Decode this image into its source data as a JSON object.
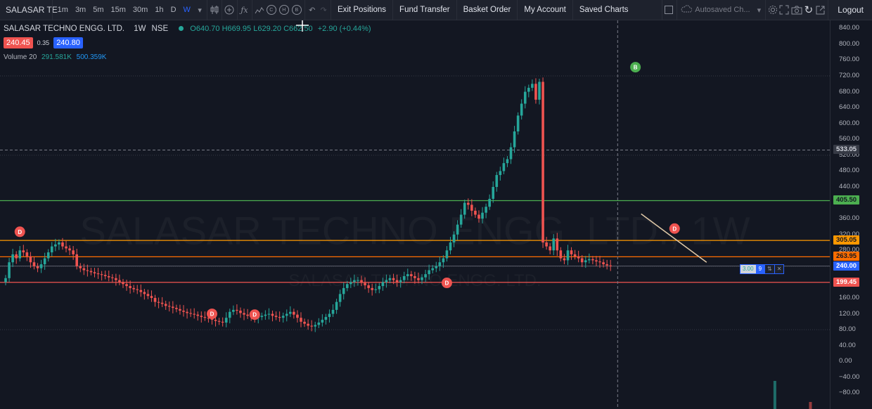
{
  "toolbar": {
    "symbol": "SALASAR TE",
    "intervals": [
      "1m",
      "3m",
      "5m",
      "15m",
      "30m",
      "1h",
      "D",
      "W"
    ],
    "active_interval": "W",
    "circle_icons": [
      "C",
      "H",
      "B"
    ],
    "buttons": [
      "Exit Positions",
      "Fund Transfer",
      "Basket Order",
      "My Account",
      "Saved Charts"
    ],
    "autosave": "Autosaved Ch...",
    "logout": "Logout"
  },
  "legend": {
    "title": "SALASAR TECHNO ENGG. LTD.",
    "interval": "1W",
    "exchange": "NSE",
    "open_label": "O",
    "open": "640.70",
    "high_label": "H",
    "high": "669.95",
    "low_label": "L",
    "low": "629.20",
    "close_label": "C",
    "close": "662.50",
    "change": "+2.90 (+0.44%)",
    "sell": "240.45",
    "spread": "0.35",
    "buy": "240.80",
    "volume_label": "Volume 20",
    "volume_a": "291.581K",
    "volume_b": "500.359K"
  },
  "watermark": {
    "main": "SALASAR TECHNO ENGG. LTD., 1W",
    "sub": "SALASAR TECHNO ENGG. LTD."
  },
  "axis_ticks": [
    "840.00",
    "800.00",
    "760.00",
    "720.00",
    "680.00",
    "640.00",
    "600.00",
    "560.00",
    "520.00",
    "480.00",
    "440.00",
    "400.00",
    "360.00",
    "320.00",
    "280.00",
    "240.00",
    "200.00",
    "160.00",
    "120.00",
    "80.00",
    "40.00",
    "0.00",
    "−40.00",
    "−80.00"
  ],
  "price_tags": [
    {
      "label": "533.05",
      "price": 533.05,
      "bg": "#363a45",
      "fg": "#d1d4dc"
    },
    {
      "label": "405.50",
      "price": 405.5,
      "bg": "#4caf50",
      "fg": "#131722"
    },
    {
      "label": "305.05",
      "price": 305.05,
      "bg": "#ff9800",
      "fg": "#131722"
    },
    {
      "label": "263.95",
      "price": 263.95,
      "bg": "#ff6d00",
      "fg": "#131722"
    },
    {
      "label": "240.40",
      "price": 240.4,
      "bg": "#ef5350",
      "fg": "#ffffff"
    },
    {
      "label": "240.00",
      "price": 240.0,
      "bg": "#2962ff",
      "fg": "#ffffff"
    },
    {
      "label": "199.45",
      "price": 199.45,
      "bg": "#ef5350",
      "fg": "#ffffff"
    }
  ],
  "order": {
    "qty": "3.00",
    "count": "9"
  },
  "markers": [
    {
      "label": "D",
      "idx": 4,
      "price": 327
    },
    {
      "label": "D",
      "idx": 58,
      "price": 120
    },
    {
      "label": "D",
      "idx": 70,
      "price": 118
    },
    {
      "label": "D",
      "idx": 124,
      "price": 198
    },
    {
      "label": "B",
      "idx": 177,
      "price": 742
    },
    {
      "label": "D",
      "idx": 188,
      "price": 335
    }
  ],
  "colors": {
    "up": "#26a69a",
    "down": "#ef5350",
    "background": "#131722",
    "grid": "#2a2e39",
    "accent": "#2962ff"
  },
  "chart_data": {
    "type": "candlestick",
    "y_range": [
      -120,
      860
    ],
    "closes": [
      210,
      250,
      270,
      260,
      280,
      275,
      265,
      250,
      240,
      235,
      245,
      260,
      275,
      290,
      295,
      300,
      290,
      285,
      280,
      270,
      240,
      235,
      230,
      228,
      225,
      222,
      220,
      218,
      215,
      212,
      210,
      205,
      200,
      195,
      190,
      185,
      182,
      180,
      175,
      170,
      165,
      160,
      150,
      148,
      145,
      140,
      138,
      135,
      132,
      128,
      125,
      122,
      120,
      118,
      115,
      112,
      110,
      108,
      105,
      102,
      100,
      98,
      110,
      125,
      130,
      128,
      122,
      118,
      115,
      112,
      110,
      112,
      115,
      118,
      120,
      115,
      112,
      110,
      115,
      120,
      125,
      118,
      110,
      100,
      95,
      90,
      88,
      92,
      98,
      105,
      112,
      120,
      130,
      150,
      170,
      185,
      195,
      200,
      205,
      205,
      198,
      192,
      185,
      180,
      182,
      190,
      200,
      205,
      210,
      205,
      200,
      205,
      215,
      220,
      215,
      210,
      205,
      212,
      220,
      230,
      235,
      240,
      250,
      260,
      280,
      300,
      320,
      345,
      370,
      400,
      395,
      380,
      370,
      360,
      375,
      390,
      410,
      440,
      470,
      480,
      500,
      510,
      540,
      580,
      620,
      650,
      680,
      690,
      700,
      660,
      705,
      300,
      290,
      280,
      310,
      280,
      260,
      255,
      280,
      270,
      265,
      260,
      250,
      255,
      258,
      255,
      252,
      250,
      245,
      242,
      240
    ]
  },
  "volume_bars": [
    {
      "idx": 198,
      "h": 40,
      "color": "#26a69a"
    },
    {
      "idx": 208,
      "h": 10,
      "color": "#ef5350"
    }
  ]
}
